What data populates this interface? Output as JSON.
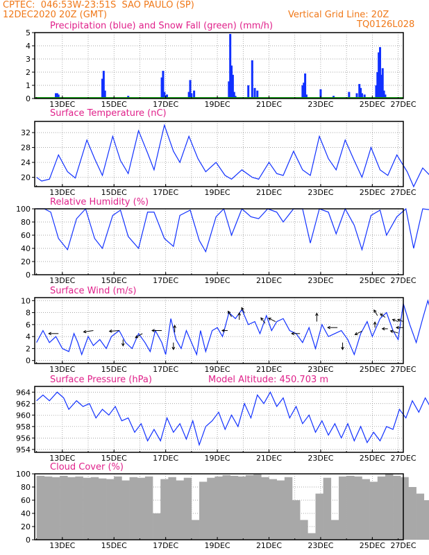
{
  "header": {
    "line1_left": "CPTEC:  046:53W-23:51S  SAO PAULO (SP)",
    "line2_left": "12DEC2020 20Z (GMT)",
    "line2_right": "Vertical Grid Line: 20Z",
    "line3_right": "TQ0126L028"
  },
  "colors": {
    "header": "#f07818",
    "title": "#e0208a",
    "series": "#1030ff",
    "snow": "#10a010",
    "cloud": "#a8a8a8",
    "grid": "#888888"
  },
  "x_tick_labels": [
    "13DEC",
    "15DEC",
    "17DEC",
    "19DEC",
    "21DEC",
    "23DEC",
    "25DEC",
    "27DEC"
  ],
  "chart_data": [
    {
      "type": "bar",
      "title": "Precipitation (blue) and Snow Fall (green) (mm/h)",
      "x_unit": "days since 12DEC2020 20Z",
      "ylim": [
        0,
        5
      ],
      "yticks": [
        0,
        1,
        2,
        3,
        4,
        5
      ],
      "series": [
        {
          "name": "Precipitation",
          "color": "#1030ff",
          "x": [
            0.75,
            0.8,
            0.85,
            2.55,
            2.6,
            2.65,
            3.55,
            4.85,
            4.9,
            4.95,
            5.05,
            5.9,
            5.95,
            6.0,
            6.1,
            7.45,
            7.5,
            7.55,
            7.6,
            7.65,
            7.7,
            8.2,
            8.35,
            8.45,
            8.55,
            10.3,
            10.35,
            10.4,
            10.45,
            11.0,
            11.5,
            12.1,
            12.4,
            12.5,
            12.55,
            12.6,
            12.7,
            13.15,
            13.2,
            13.25,
            13.3,
            13.35,
            13.4,
            13.45,
            13.5
          ],
          "values": [
            0.4,
            0.4,
            0.3,
            1.5,
            2.1,
            0.6,
            0.2,
            1.6,
            2.1,
            0.5,
            0.3,
            0.5,
            1.4,
            0.4,
            0.6,
            1.3,
            4.9,
            2.5,
            1.8,
            0.5,
            0.2,
            1.0,
            2.9,
            0.8,
            0.6,
            1.0,
            1.2,
            1.9,
            0.3,
            0.7,
            0.2,
            0.5,
            0.4,
            1.1,
            0.8,
            0.4,
            0.3,
            1.0,
            2.0,
            3.5,
            3.9,
            1.8,
            2.3,
            0.6,
            0.3
          ]
        },
        {
          "name": "Snow Fall",
          "color": "#10a010",
          "values": [
            0
          ]
        }
      ]
    },
    {
      "type": "line",
      "title": "Surface Temperature (nC)",
      "ylim": [
        17.5,
        35
      ],
      "yticks": [
        20,
        24,
        28,
        32
      ],
      "x": [
        0,
        0.2,
        0.5,
        0.85,
        1.2,
        1.5,
        1.95,
        2.25,
        2.55,
        2.95,
        3.25,
        3.55,
        3.95,
        4.3,
        4.55,
        4.95,
        5.3,
        5.55,
        5.9,
        6.25,
        6.55,
        6.95,
        7.3,
        7.55,
        7.95,
        8.35,
        8.6,
        9.0,
        9.3,
        9.55,
        9.95,
        10.3,
        10.6,
        10.95,
        11.3,
        11.6,
        11.95,
        12.3,
        12.6,
        12.95,
        13.3,
        13.6,
        13.95,
        14.35,
        14.6,
        14.95,
        15.3,
        15.6,
        15.95,
        16.4,
        16.65,
        17.0,
        17.4
      ],
      "values": [
        20,
        19,
        19.5,
        26,
        21.5,
        19.8,
        30,
        25,
        20.5,
        31,
        24.5,
        21,
        32.5,
        26.5,
        22,
        34,
        27,
        24,
        31,
        25,
        21.5,
        24,
        20.5,
        19.5,
        22,
        20,
        19.5,
        24,
        21,
        20.5,
        27,
        22,
        20.5,
        31,
        25,
        22,
        30,
        24.5,
        20,
        28,
        22,
        20.5,
        26,
        21.5,
        17.5,
        22.5,
        20,
        18.5,
        25,
        19.5,
        17.5,
        26.5,
        21.5
      ]
    },
    {
      "type": "line",
      "title": "Relative Humidity (%)",
      "ylim": [
        0,
        100
      ],
      "yticks": [
        0,
        20,
        40,
        60,
        80,
        100
      ],
      "x": [
        0,
        0.3,
        0.55,
        0.85,
        1.2,
        1.55,
        1.9,
        2.25,
        2.55,
        2.95,
        3.25,
        3.55,
        3.95,
        4.3,
        4.55,
        4.95,
        5.3,
        5.55,
        5.95,
        6.3,
        6.55,
        6.95,
        7.25,
        7.55,
        7.95,
        8.3,
        8.6,
        8.95,
        9.3,
        9.55,
        9.95,
        10.3,
        10.6,
        10.95,
        11.3,
        11.6,
        11.95,
        12.3,
        12.6,
        12.95,
        13.3,
        13.55,
        13.95,
        14.3,
        14.6,
        14.95,
        15.35,
        15.6,
        15.95,
        16.35,
        16.65,
        17.0,
        17.4
      ],
      "values": [
        100,
        100,
        95,
        55,
        38,
        85,
        100,
        55,
        40,
        90,
        98,
        58,
        40,
        95,
        95,
        55,
        43,
        90,
        98,
        52,
        35,
        88,
        100,
        60,
        100,
        88,
        85,
        100,
        95,
        80,
        100,
        100,
        48,
        100,
        95,
        62,
        100,
        75,
        38,
        90,
        98,
        60,
        88,
        100,
        40,
        100,
        98,
        68,
        100,
        72,
        48,
        62,
        65
      ]
    },
    {
      "type": "line",
      "title": "Surface Wind (m/s)",
      "ylim": [
        -0.5,
        10.5
      ],
      "yticks": [
        0,
        2,
        4,
        6,
        8,
        10
      ],
      "x": [
        0,
        0.25,
        0.5,
        0.75,
        1.0,
        1.25,
        1.45,
        1.6,
        1.75,
        2.0,
        2.2,
        2.45,
        2.7,
        2.9,
        3.2,
        3.45,
        3.7,
        3.95,
        4.2,
        4.4,
        4.6,
        4.85,
        5.0,
        5.2,
        5.4,
        5.6,
        5.8,
        6.0,
        6.2,
        6.35,
        6.55,
        6.8,
        7.0,
        7.2,
        7.45,
        7.7,
        7.95,
        8.2,
        8.45,
        8.65,
        8.9,
        9.1,
        9.3,
        9.55,
        9.8,
        10.05,
        10.3,
        10.55,
        10.8,
        11.05,
        11.3,
        11.55,
        11.8,
        12.05,
        12.3,
        12.55,
        12.8,
        13.0,
        13.3,
        13.55,
        13.8,
        14.0,
        14.2,
        14.45,
        14.7,
        14.95,
        15.15,
        15.4,
        15.65,
        15.9,
        16.1,
        16.35,
        16.6,
        16.85,
        17.1,
        17.4
      ],
      "values": [
        3,
        5,
        3,
        4,
        2,
        1.5,
        4.5,
        3,
        1,
        4,
        2.5,
        3.5,
        2,
        4,
        5,
        3,
        2,
        4.5,
        3,
        1.5,
        5,
        3,
        1,
        7,
        3.5,
        2,
        5,
        3,
        1,
        5,
        1.5,
        5,
        5.5,
        4,
        8,
        7,
        8.5,
        6,
        6.5,
        4.5,
        7.5,
        5,
        6.5,
        7,
        5,
        4.5,
        3,
        5.5,
        2,
        6,
        4,
        4.5,
        5,
        3.5,
        1,
        4.5,
        6.5,
        4,
        7,
        8,
        5,
        3.5,
        9.5,
        6,
        3,
        7,
        10,
        6.5,
        3,
        6,
        4.5,
        2.5,
        8,
        5,
        4.5,
        8
      ]
    },
    {
      "type": "line",
      "title": "Surface Pressure (hPa)",
      "annotation": "Model Altitude: 450.703 m",
      "ylim": [
        953.5,
        965
      ],
      "yticks": [
        954,
        956,
        958,
        960,
        962,
        964
      ],
      "x": [
        0,
        0.25,
        0.5,
        0.8,
        1.05,
        1.25,
        1.55,
        1.8,
        2.05,
        2.3,
        2.55,
        2.8,
        3.05,
        3.3,
        3.55,
        3.8,
        4.05,
        4.3,
        4.55,
        4.8,
        5.05,
        5.3,
        5.55,
        5.8,
        6.05,
        6.3,
        6.55,
        6.8,
        7.05,
        7.3,
        7.55,
        7.8,
        8.05,
        8.3,
        8.55,
        8.8,
        9.05,
        9.3,
        9.55,
        9.8,
        10.05,
        10.3,
        10.55,
        10.8,
        11.05,
        11.3,
        11.55,
        11.8,
        12.05,
        12.3,
        12.55,
        12.8,
        13.05,
        13.3,
        13.55,
        13.8,
        14.05,
        14.3,
        14.55,
        14.8,
        15.05,
        15.3,
        15.55,
        15.8,
        16.05,
        16.3,
        16.55,
        16.8,
        17.05,
        17.4
      ],
      "values": [
        962.5,
        963.5,
        962.5,
        964,
        963,
        961,
        962.5,
        961.5,
        962,
        959.5,
        961,
        960,
        961.5,
        959,
        959.5,
        957,
        958.5,
        955.5,
        957.5,
        955.5,
        959.5,
        957,
        958.5,
        955.8,
        959,
        954.8,
        958,
        959,
        960.5,
        957.5,
        960,
        958,
        962,
        959.5,
        963.5,
        962,
        964,
        961.5,
        963,
        959.5,
        961.5,
        958.5,
        960,
        957,
        959,
        956.5,
        958.5,
        956,
        958.5,
        955.5,
        958,
        955.2,
        957,
        955.5,
        958,
        957.5,
        961,
        959.5,
        962.5,
        960.5,
        963,
        961,
        963.5,
        962,
        962.5,
        959.5,
        963,
        957.5,
        962.5,
        961
      ]
    },
    {
      "type": "area",
      "title": "Cloud Cover (%)",
      "ylim": [
        0,
        100
      ],
      "yticks": [
        0,
        20,
        40,
        60,
        80,
        100
      ],
      "x": [
        0,
        0.3,
        0.6,
        0.9,
        1.2,
        1.5,
        1.8,
        2.1,
        2.4,
        2.7,
        3.0,
        3.3,
        3.6,
        3.9,
        4.2,
        4.5,
        4.8,
        5.1,
        5.4,
        5.7,
        6.0,
        6.3,
        6.6,
        6.9,
        7.2,
        7.5,
        7.8,
        8.1,
        8.4,
        8.7,
        9.0,
        9.3,
        9.6,
        9.9,
        10.2,
        10.5,
        10.8,
        11.1,
        11.4,
        11.7,
        12.0,
        12.3,
        12.6,
        12.9,
        13.2,
        13.5,
        13.8,
        14.1,
        14.4,
        14.7,
        15.0,
        15.3,
        15.6,
        15.9,
        16.2,
        16.5,
        16.8,
        17.1,
        17.4
      ],
      "values": [
        97,
        96,
        95,
        97,
        95,
        96,
        94,
        95,
        93,
        92,
        96,
        90,
        95,
        94,
        96,
        40,
        92,
        95,
        90,
        94,
        30,
        88,
        94,
        96,
        98,
        97,
        96,
        98,
        99,
        95,
        92,
        90,
        95,
        60,
        30,
        10,
        70,
        94,
        30,
        96,
        97,
        96,
        92,
        88,
        96,
        100,
        97,
        95,
        80,
        70,
        60,
        30,
        75,
        55,
        40,
        50,
        65,
        45,
        55
      ]
    }
  ]
}
